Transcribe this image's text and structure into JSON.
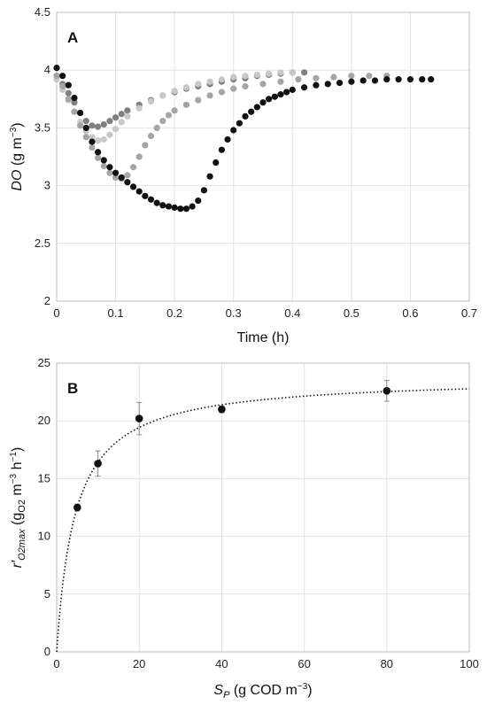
{
  "chart_data": [
    {
      "type": "scatter",
      "panel_label": "A",
      "xlabel": "Time (h)",
      "ylabel_main": "DO",
      "ylabel_rest": " (g m",
      "ylabel_sup": "−3",
      "ylabel_close": ")",
      "xlim": [
        0,
        0.7
      ],
      "ylim": [
        2,
        4.5
      ],
      "xticks": [
        "0",
        "0.1",
        "0.2",
        "0.3",
        "0.4",
        "0.5",
        "0.6",
        "0.7"
      ],
      "yticks": [
        "2",
        "2.5",
        "3",
        "3.5",
        "4",
        "4.5"
      ],
      "grid": true,
      "series": [
        {
          "color": "#808080",
          "x": [
            0,
            0.01,
            0.02,
            0.03,
            0.04,
            0.05,
            0.06,
            0.07,
            0.08,
            0.09,
            0.1,
            0.11,
            0.12,
            0.14,
            0.16,
            0.18,
            0.2,
            0.22,
            0.24,
            0.26,
            0.28,
            0.3,
            0.32,
            0.34,
            0.36,
            0.38,
            0.4,
            0.42
          ],
          "y": [
            3.95,
            3.88,
            3.8,
            3.72,
            3.63,
            3.56,
            3.52,
            3.51,
            3.53,
            3.56,
            3.59,
            3.62,
            3.65,
            3.7,
            3.74,
            3.78,
            3.81,
            3.84,
            3.86,
            3.88,
            3.9,
            3.92,
            3.93,
            3.95,
            3.96,
            3.97,
            3.98,
            3.98
          ]
        },
        {
          "color": "#c8c8c8",
          "x": [
            0,
            0.01,
            0.02,
            0.03,
            0.04,
            0.05,
            0.06,
            0.07,
            0.08,
            0.09,
            0.1,
            0.11,
            0.12,
            0.14,
            0.16,
            0.18,
            0.2,
            0.22,
            0.24,
            0.26,
            0.28,
            0.3,
            0.32,
            0.34,
            0.36,
            0.38,
            0.4
          ],
          "y": [
            3.92,
            3.83,
            3.74,
            3.64,
            3.55,
            3.47,
            3.42,
            3.39,
            3.4,
            3.44,
            3.49,
            3.55,
            3.6,
            3.67,
            3.73,
            3.78,
            3.82,
            3.85,
            3.88,
            3.9,
            3.92,
            3.94,
            3.95,
            3.96,
            3.97,
            3.98,
            3.98
          ]
        },
        {
          "color": "#a5a5a5",
          "x": [
            0,
            0.01,
            0.02,
            0.03,
            0.04,
            0.05,
            0.06,
            0.07,
            0.08,
            0.09,
            0.1,
            0.11,
            0.12,
            0.13,
            0.14,
            0.15,
            0.16,
            0.17,
            0.18,
            0.19,
            0.2,
            0.22,
            0.24,
            0.26,
            0.28,
            0.3,
            0.32,
            0.35,
            0.38,
            0.41,
            0.44,
            0.47,
            0.5,
            0.53,
            0.56
          ],
          "y": [
            3.95,
            3.86,
            3.75,
            3.64,
            3.52,
            3.42,
            3.33,
            3.24,
            3.17,
            3.11,
            3.07,
            3.06,
            3.09,
            3.16,
            3.25,
            3.35,
            3.43,
            3.5,
            3.56,
            3.61,
            3.65,
            3.7,
            3.74,
            3.78,
            3.81,
            3.84,
            3.86,
            3.88,
            3.9,
            3.92,
            3.93,
            3.94,
            3.95,
            3.95,
            3.95
          ]
        },
        {
          "color": "#111111",
          "x": [
            0,
            0.01,
            0.02,
            0.03,
            0.04,
            0.05,
            0.06,
            0.07,
            0.08,
            0.09,
            0.1,
            0.11,
            0.12,
            0.13,
            0.14,
            0.15,
            0.16,
            0.17,
            0.18,
            0.19,
            0.2,
            0.21,
            0.22,
            0.23,
            0.24,
            0.25,
            0.26,
            0.27,
            0.28,
            0.29,
            0.3,
            0.31,
            0.32,
            0.33,
            0.34,
            0.35,
            0.36,
            0.37,
            0.38,
            0.39,
            0.4,
            0.42,
            0.44,
            0.46,
            0.48,
            0.5,
            0.52,
            0.54,
            0.56,
            0.58,
            0.6,
            0.62,
            0.635
          ],
          "y": [
            4.02,
            3.95,
            3.87,
            3.76,
            3.63,
            3.5,
            3.38,
            3.29,
            3.22,
            3.16,
            3.11,
            3.07,
            3.03,
            2.99,
            2.95,
            2.91,
            2.88,
            2.85,
            2.83,
            2.82,
            2.81,
            2.8,
            2.8,
            2.82,
            2.87,
            2.96,
            3.08,
            3.2,
            3.31,
            3.4,
            3.48,
            3.54,
            3.6,
            3.64,
            3.68,
            3.72,
            3.75,
            3.77,
            3.79,
            3.81,
            3.83,
            3.85,
            3.87,
            3.88,
            3.89,
            3.9,
            3.91,
            3.91,
            3.92,
            3.92,
            3.92,
            3.92,
            3.92
          ]
        }
      ]
    },
    {
      "type": "scatter",
      "panel_label": "B",
      "xlabel_var": "S",
      "xlabel_sub": "P",
      "xlabel_rest": " (g COD m",
      "xlabel_sup": "−3",
      "xlabel_close": ")",
      "ylabel_main": "r′",
      "ylabel_sub": "O2max",
      "ylabel_open": " (g",
      "ylabel_sub2": "O2",
      "ylabel_mid": " m",
      "ylabel_sup1": "−3",
      "ylabel_h": " h",
      "ylabel_sup2": "−1",
      "ylabel_close": ")",
      "xlim": [
        0,
        100
      ],
      "ylim": [
        0,
        25
      ],
      "xticks": [
        "0",
        "20",
        "40",
        "60",
        "80",
        "100"
      ],
      "yticks": [
        "0",
        "5",
        "10",
        "15",
        "20",
        "25"
      ],
      "grid": true,
      "points": {
        "color": "#111111",
        "x": [
          5,
          10,
          20,
          40,
          80
        ],
        "y": [
          12.5,
          16.3,
          20.2,
          21.0,
          22.6
        ],
        "err": [
          0.3,
          1.1,
          1.4,
          0.3,
          0.9
        ]
      },
      "fit": {
        "style": "dotted",
        "vmax": 23.8,
        "ks": 4.5
      }
    }
  ]
}
